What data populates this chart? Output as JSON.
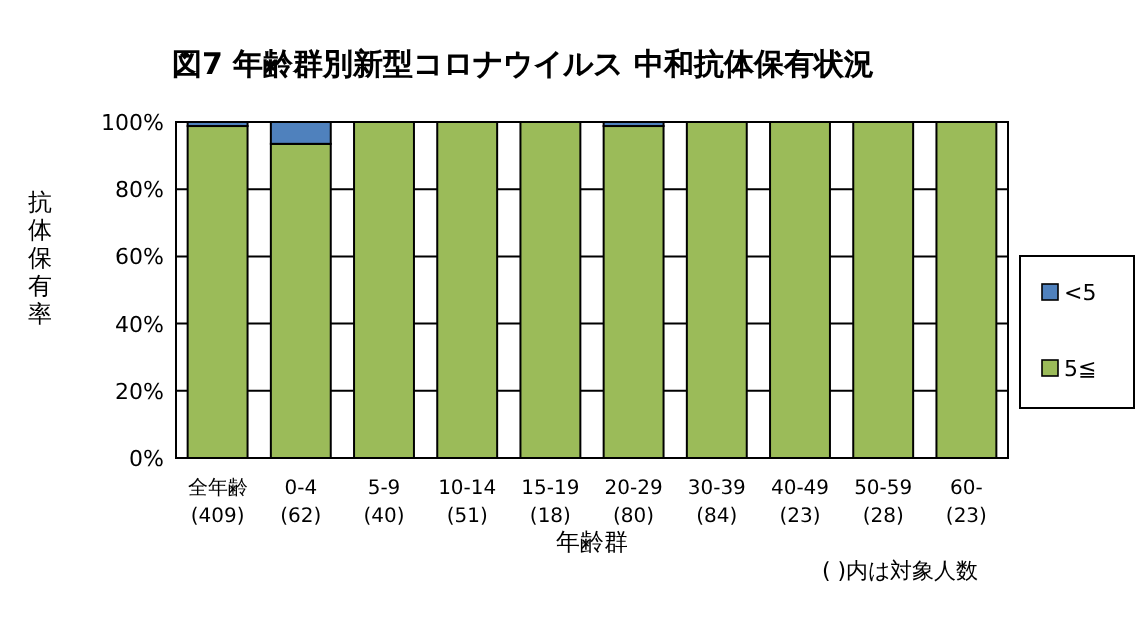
{
  "chart_data": {
    "type": "bar",
    "title": "図7  年齢群別新型コロナウイルス 中和抗体保有状況",
    "xlabel": "年齢群",
    "ylabel": "抗体保有率",
    "annotations": [
      "( )内は対象人数"
    ],
    "categories": [
      "全年齢\n(409)",
      "0-4\n(62)",
      "5-9\n(40)",
      "10-14\n(51)",
      "15-19\n(18)",
      "20-29\n(80)",
      "30-39\n(84)",
      "40-49\n(23)",
      "50-59\n(28)",
      "60-\n(23)"
    ],
    "stacked": true,
    "series": [
      {
        "name": "5≦",
        "color": "#9bbb59",
        "values": [
          98.8,
          93.5,
          100,
          100,
          100,
          98.8,
          100,
          100,
          100,
          100
        ]
      },
      {
        "name": "<5",
        "color": "#4f81bd",
        "values": [
          1.2,
          6.5,
          0,
          0,
          0,
          1.2,
          0,
          0,
          0,
          0
        ]
      }
    ],
    "ylim": [
      0,
      100
    ],
    "yticks": [
      {
        "value": 0,
        "label": "0%"
      },
      {
        "value": 20,
        "label": "20%"
      },
      {
        "value": 40,
        "label": "40%"
      },
      {
        "value": 60,
        "label": "60%"
      },
      {
        "value": 80,
        "label": "80%"
      },
      {
        "value": 100,
        "label": "100%"
      }
    ],
    "grid": "y",
    "legend": "right"
  }
}
